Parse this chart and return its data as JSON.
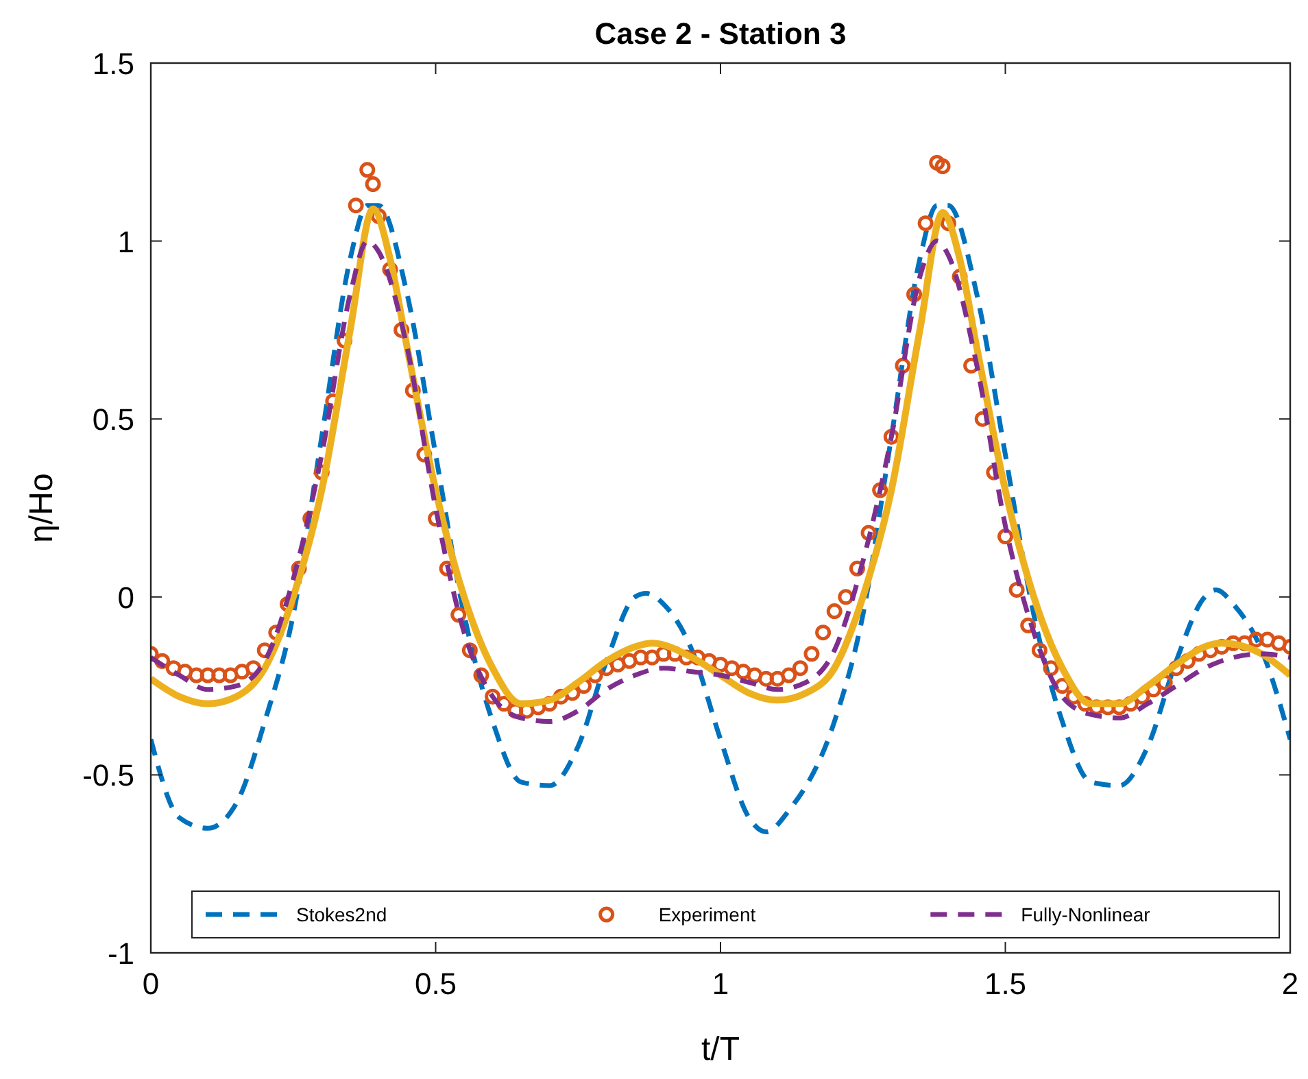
{
  "chart_data": {
    "type": "line",
    "title": "Case 2 - Station 3",
    "xlabel": "t/T",
    "ylabel": "η/Ho",
    "xlim": [
      0,
      2
    ],
    "ylim": [
      -1,
      1.5
    ],
    "xticks": [
      0,
      0.5,
      1,
      1.5,
      2
    ],
    "yticks": [
      -1,
      -0.5,
      0,
      0.5,
      1,
      1.5
    ],
    "grid": false,
    "legend": "bottom",
    "series": [
      {
        "name": "Stokes2nd",
        "color": "#0072bd",
        "line_style": "dashed",
        "marker": "none",
        "x": [
          0,
          0.05,
          0.1,
          0.15,
          0.2,
          0.25,
          0.3,
          0.35,
          0.38,
          0.4,
          0.45,
          0.5,
          0.55,
          0.6,
          0.65,
          0.7,
          0.75,
          0.8,
          0.85,
          0.87,
          0.9,
          0.95,
          1,
          1.05,
          1.08,
          1.12,
          1.2,
          1.25,
          1.3,
          1.35,
          1.38,
          1.4,
          1.45,
          1.5,
          1.55,
          1.6,
          1.65,
          1.7,
          1.75,
          1.8,
          1.85,
          1.87,
          1.9,
          1.95,
          2
        ],
        "values": [
          -0.4,
          -0.62,
          -0.65,
          -0.58,
          -0.35,
          -0.05,
          0.45,
          0.95,
          1.1,
          1.1,
          0.85,
          0.4,
          -0.05,
          -0.35,
          -0.52,
          -0.53,
          -0.42,
          -0.18,
          0,
          0.01,
          -0.02,
          -0.15,
          -0.4,
          -0.62,
          -0.66,
          -0.6,
          -0.35,
          -0.05,
          0.45,
          0.95,
          1.1,
          1.1,
          0.85,
          0.4,
          -0.05,
          -0.35,
          -0.52,
          -0.53,
          -0.42,
          -0.18,
          0,
          0.02,
          -0.02,
          -0.15,
          -0.4
        ]
      },
      {
        "name": "Experiment",
        "type": "scatter",
        "color": "#d95319",
        "marker": "circle",
        "x": [
          0,
          0.02,
          0.04,
          0.06,
          0.08,
          0.1,
          0.12,
          0.14,
          0.16,
          0.18,
          0.2,
          0.22,
          0.24,
          0.26,
          0.28,
          0.3,
          0.32,
          0.34,
          0.36,
          0.38,
          0.39,
          0.4,
          0.42,
          0.44,
          0.46,
          0.48,
          0.5,
          0.52,
          0.54,
          0.56,
          0.58,
          0.6,
          0.62,
          0.64,
          0.66,
          0.68,
          0.7,
          0.72,
          0.74,
          0.76,
          0.78,
          0.8,
          0.82,
          0.84,
          0.86,
          0.88,
          0.9,
          0.92,
          0.94,
          0.96,
          0.98,
          1,
          1.02,
          1.04,
          1.06,
          1.08,
          1.1,
          1.12,
          1.14,
          1.16,
          1.18,
          1.2,
          1.22,
          1.24,
          1.26,
          1.28,
          1.3,
          1.32,
          1.34,
          1.36,
          1.38,
          1.39,
          1.4,
          1.42,
          1.44,
          1.46,
          1.48,
          1.5,
          1.52,
          1.54,
          1.56,
          1.58,
          1.6,
          1.62,
          1.64,
          1.66,
          1.68,
          1.7,
          1.72,
          1.74,
          1.76,
          1.78,
          1.8,
          1.82,
          1.84,
          1.86,
          1.88,
          1.9,
          1.92,
          1.94,
          1.96,
          1.98,
          2
        ],
        "values": [
          -0.16,
          -0.18,
          -0.2,
          -0.21,
          -0.22,
          -0.22,
          -0.22,
          -0.22,
          -0.21,
          -0.2,
          -0.15,
          -0.1,
          -0.02,
          0.08,
          0.22,
          0.35,
          0.55,
          0.72,
          1.1,
          1.2,
          1.16,
          1.07,
          0.92,
          0.75,
          0.58,
          0.4,
          0.22,
          0.08,
          -0.05,
          -0.15,
          -0.22,
          -0.28,
          -0.3,
          -0.32,
          -0.32,
          -0.31,
          -0.3,
          -0.28,
          -0.27,
          -0.25,
          -0.22,
          -0.2,
          -0.19,
          -0.18,
          -0.17,
          -0.17,
          -0.16,
          -0.16,
          -0.17,
          -0.17,
          -0.18,
          -0.19,
          -0.2,
          -0.21,
          -0.22,
          -0.23,
          -0.23,
          -0.22,
          -0.2,
          -0.16,
          -0.1,
          -0.04,
          0,
          0.08,
          0.18,
          0.3,
          0.45,
          0.65,
          0.85,
          1.05,
          1.22,
          1.21,
          1.05,
          0.9,
          0.65,
          0.5,
          0.35,
          0.17,
          0.02,
          -0.08,
          -0.15,
          -0.2,
          -0.25,
          -0.28,
          -0.3,
          -0.31,
          -0.31,
          -0.31,
          -0.3,
          -0.28,
          -0.26,
          -0.24,
          -0.2,
          -0.18,
          -0.16,
          -0.15,
          -0.14,
          -0.13,
          -0.13,
          -0.12,
          -0.12,
          -0.13,
          -0.14
        ]
      },
      {
        "color": "#edb120",
        "line_style": "solid",
        "marker": "none",
        "x": [
          0,
          0.05,
          0.1,
          0.15,
          0.2,
          0.25,
          0.3,
          0.35,
          0.39,
          0.42,
          0.45,
          0.5,
          0.55,
          0.6,
          0.65,
          0.7,
          0.75,
          0.8,
          0.85,
          0.88,
          0.95,
          1,
          1.05,
          1.1,
          1.15,
          1.2,
          1.25,
          1.3,
          1.35,
          1.39,
          1.42,
          1.45,
          1.5,
          1.55,
          1.6,
          1.65,
          1.7,
          1.75,
          1.8,
          1.85,
          1.88,
          1.95,
          2
        ],
        "values": [
          -0.23,
          -0.28,
          -0.3,
          -0.28,
          -0.2,
          0,
          0.3,
          0.75,
          1.09,
          0.95,
          0.7,
          0.3,
          0,
          -0.2,
          -0.3,
          -0.29,
          -0.24,
          -0.18,
          -0.14,
          -0.13,
          -0.17,
          -0.22,
          -0.27,
          -0.29,
          -0.27,
          -0.2,
          0,
          0.3,
          0.75,
          1.08,
          0.95,
          0.7,
          0.3,
          0,
          -0.2,
          -0.3,
          -0.3,
          -0.25,
          -0.19,
          -0.14,
          -0.13,
          -0.16,
          -0.22
        ]
      },
      {
        "name": "Fully-Nonlinear",
        "color": "#7e2f8e",
        "line_style": "dashed",
        "marker": "none",
        "x": [
          0,
          0.05,
          0.1,
          0.15,
          0.2,
          0.25,
          0.3,
          0.35,
          0.38,
          0.4,
          0.45,
          0.5,
          0.55,
          0.6,
          0.65,
          0.7,
          0.75,
          0.8,
          0.85,
          0.9,
          0.95,
          1,
          1.05,
          1.1,
          1.15,
          1.2,
          1.25,
          1.3,
          1.35,
          1.38,
          1.4,
          1.45,
          1.5,
          1.55,
          1.6,
          1.65,
          1.7,
          1.75,
          1.8,
          1.85,
          1.9,
          1.95,
          2
        ],
        "values": [
          -0.17,
          -0.22,
          -0.26,
          -0.25,
          -0.18,
          0.05,
          0.4,
          0.85,
          1,
          0.97,
          0.7,
          0.25,
          -0.1,
          -0.28,
          -0.34,
          -0.35,
          -0.32,
          -0.26,
          -0.22,
          -0.2,
          -0.21,
          -0.22,
          -0.24,
          -0.26,
          -0.24,
          -0.15,
          0.1,
          0.45,
          0.9,
          1,
          0.96,
          0.65,
          0.2,
          -0.1,
          -0.28,
          -0.33,
          -0.34,
          -0.3,
          -0.25,
          -0.2,
          -0.17,
          -0.16,
          -0.17
        ]
      }
    ]
  }
}
